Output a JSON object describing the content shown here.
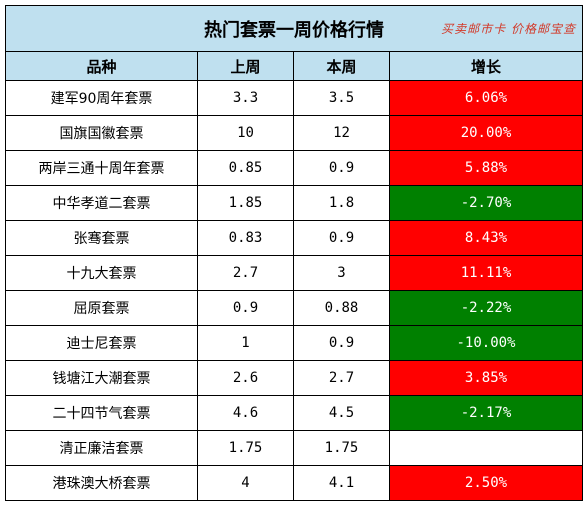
{
  "title": "热门套票一周价格行情",
  "watermark": "买卖邮市卡 价格邮宝查",
  "headers": {
    "variety": "品种",
    "last_week": "上周",
    "this_week": "本周",
    "growth": "增长"
  },
  "rows": [
    {
      "name": "建军90周年套票",
      "last": "3.3",
      "current": "3.5",
      "growth": "6.06%",
      "trend": "up"
    },
    {
      "name": "国旗国徽套票",
      "last": "10",
      "current": "12",
      "growth": "20.00%",
      "trend": "up"
    },
    {
      "name": "两岸三通十周年套票",
      "last": "0.85",
      "current": "0.9",
      "growth": "5.88%",
      "trend": "up"
    },
    {
      "name": "中华孝道二套票",
      "last": "1.85",
      "current": "1.8",
      "growth": "-2.70%",
      "trend": "down"
    },
    {
      "name": "张骞套票",
      "last": "0.83",
      "current": "0.9",
      "growth": "8.43%",
      "trend": "up"
    },
    {
      "name": "十九大套票",
      "last": "2.7",
      "current": "3",
      "growth": "11.11%",
      "trend": "up"
    },
    {
      "name": "屈原套票",
      "last": "0.9",
      "current": "0.88",
      "growth": "-2.22%",
      "trend": "down"
    },
    {
      "name": "迪士尼套票",
      "last": "1",
      "current": "0.9",
      "growth": "-10.00%",
      "trend": "down"
    },
    {
      "name": "钱塘江大潮套票",
      "last": "2.6",
      "current": "2.7",
      "growth": "3.85%",
      "trend": "up"
    },
    {
      "name": "二十四节气套票",
      "last": "4.6",
      "current": "4.5",
      "growth": "-2.17%",
      "trend": "down"
    },
    {
      "name": "清正廉洁套票",
      "last": "1.75",
      "current": "1.75",
      "growth": "",
      "trend": "flat"
    },
    {
      "name": "港珠澳大桥套票",
      "last": "4",
      "current": "4.1",
      "growth": "2.50%",
      "trend": "up"
    }
  ],
  "colors": {
    "header_bg": "#bfe0ef",
    "up": "#ff0000",
    "down": "#008000",
    "watermark": "#d23a2a"
  }
}
